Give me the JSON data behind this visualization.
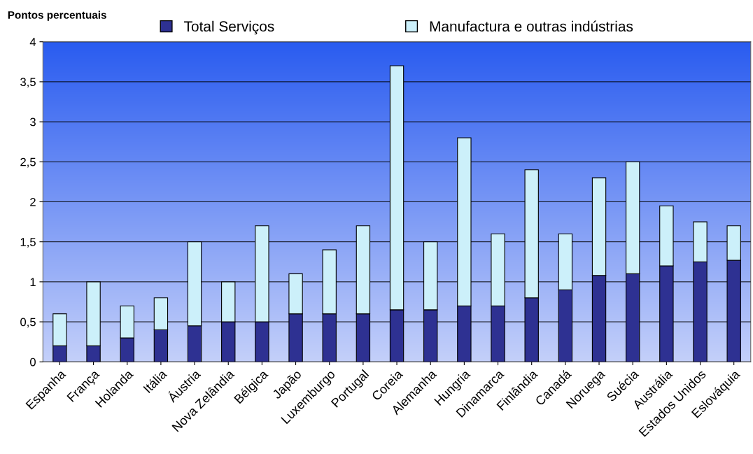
{
  "chart_data": {
    "type": "bar",
    "stacked": true,
    "ylabel": "Pontos percentuais",
    "categories": [
      "Espanha",
      "França",
      "Holanda",
      "Itália",
      "Áustria",
      "Nova Zelândia",
      "Bélgica",
      "Japão",
      "Luxemburgo",
      "Portugal",
      "Coreia",
      "Alemanha",
      "Hungria",
      "Dinamarca",
      "Finlândia",
      "Canadá",
      "Noruega",
      "Suécia",
      "Austrália",
      "Estados Unidos",
      "Eslováquia"
    ],
    "series": [
      {
        "name": "Total Serviços",
        "color": "#2e3192",
        "values": [
          0.2,
          0.2,
          0.3,
          0.4,
          0.45,
          0.5,
          0.5,
          0.6,
          0.6,
          0.6,
          0.65,
          0.65,
          0.7,
          0.7,
          0.8,
          0.9,
          1.08,
          1.1,
          1.2,
          1.25,
          1.27
        ]
      },
      {
        "name": "Manufactura e outras indústrias",
        "color": "#ccf0fa",
        "values": [
          0.4,
          0.8,
          0.4,
          0.4,
          1.05,
          0.5,
          1.2,
          0.5,
          0.8,
          1.1,
          3.05,
          0.85,
          2.1,
          0.9,
          1.6,
          0.7,
          1.22,
          1.4,
          0.75,
          0.5,
          0.43
        ]
      }
    ],
    "ylim": [
      0,
      4
    ],
    "yticks": [
      0,
      {
        "value": 0.5,
        "label": "0,5"
      },
      1,
      {
        "value": 1.5,
        "label": "1,5"
      },
      2,
      {
        "value": 2.5,
        "label": "2,5"
      },
      3,
      {
        "value": 3.5,
        "label": "3,5"
      },
      4
    ],
    "grid": "y",
    "legend": "top"
  }
}
